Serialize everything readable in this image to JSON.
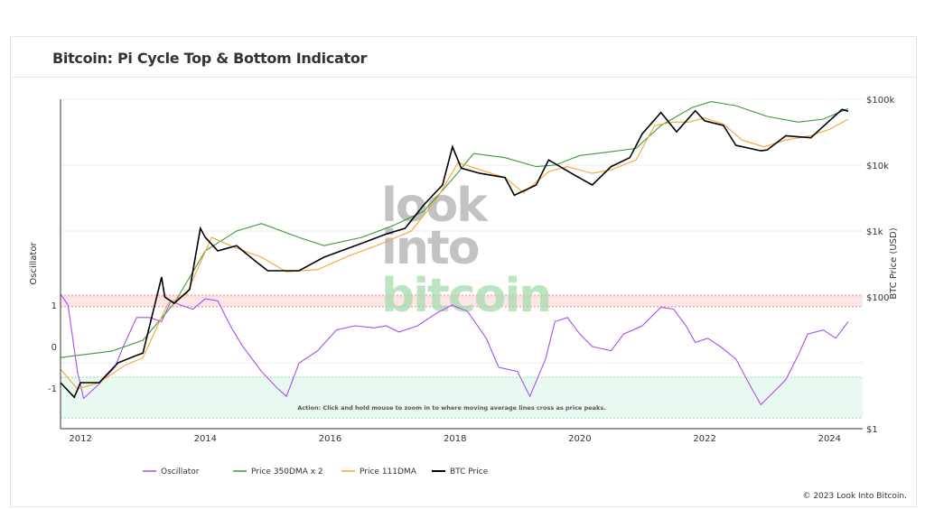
{
  "header": {
    "title": "Bitcoin: Pi Cycle Top & Bottom Indicator"
  },
  "footer": {
    "copyright": "© 2023 Look Into Bitcoin."
  },
  "watermark": [
    "look",
    "into",
    "bitcoin"
  ],
  "chart_data": {
    "type": "line",
    "title": "Bitcoin: Pi Cycle Top & Bottom Indicator",
    "xlabel": "",
    "y_left_label": "Oscillator",
    "y_left_ticks": [
      "1",
      "0",
      "-1"
    ],
    "y_right_label": "BTC Price (USD)",
    "y_right_scale": "log",
    "y_right_ticks": [
      "$1",
      "$100",
      "$1k",
      "$10k",
      "$100k"
    ],
    "x_ticks": [
      "2012",
      "2014",
      "2016",
      "2018",
      "2020",
      "2022",
      "2024"
    ],
    "xlim": [
      2011.68,
      2024.45
    ],
    "annotation": "Action: Click and hold mouse to zoom in to where moving average lines cross as price peaks.",
    "bands": [
      {
        "axis": "left",
        "from": 0.96,
        "to": 1.24,
        "color": "#f4b0b0"
      },
      {
        "axis": "left",
        "from": -1.72,
        "to": -0.74,
        "color": "#b6ecd0"
      }
    ],
    "legend_position": "bottom",
    "series": [
      {
        "name": "Oscillator",
        "axis": "left",
        "color": "#a64ff0",
        "x": [
          2011.68,
          2011.8,
          2011.95,
          2012.05,
          2012.3,
          2012.55,
          2012.7,
          2012.9,
          2013.1,
          2013.3,
          2013.45,
          2013.6,
          2013.8,
          2014.0,
          2014.2,
          2014.4,
          2014.6,
          2014.9,
          2015.15,
          2015.3,
          2015.5,
          2015.8,
          2016.1,
          2016.4,
          2016.7,
          2016.9,
          2017.1,
          2017.4,
          2017.7,
          2017.95,
          2018.2,
          2018.5,
          2018.7,
          2019.0,
          2019.2,
          2019.45,
          2019.6,
          2019.8,
          2020.0,
          2020.2,
          2020.5,
          2020.7,
          2021.0,
          2021.3,
          2021.5,
          2021.7,
          2021.85,
          2022.05,
          2022.25,
          2022.5,
          2022.75,
          2022.9,
          2023.1,
          2023.3,
          2023.5,
          2023.65,
          2023.9,
          2024.1,
          2024.3
        ],
        "y": [
          1.26,
          1.0,
          -0.6,
          -1.25,
          -0.9,
          -0.5,
          0.05,
          0.7,
          0.7,
          0.6,
          1.1,
          1.0,
          0.9,
          1.15,
          1.1,
          0.5,
          0.0,
          -0.6,
          -1.0,
          -1.2,
          -0.4,
          -0.1,
          0.4,
          0.5,
          0.45,
          0.5,
          0.35,
          0.5,
          0.8,
          1.0,
          0.85,
          0.2,
          -0.5,
          -0.6,
          -1.2,
          -0.3,
          0.6,
          0.7,
          0.3,
          0.0,
          -0.1,
          0.3,
          0.5,
          0.95,
          0.9,
          0.5,
          0.1,
          0.2,
          0.0,
          -0.3,
          -1.0,
          -1.4,
          -1.1,
          -0.8,
          -0.2,
          0.3,
          0.4,
          0.2,
          0.6
        ]
      },
      {
        "name": "Price 350DMA x 2",
        "axis": "right",
        "color": "#3a9a3a",
        "x": [
          2011.68,
          2012.5,
          2013.0,
          2013.5,
          2014.0,
          2014.5,
          2014.9,
          2015.5,
          2015.9,
          2016.5,
          2017.0,
          2017.5,
          2017.95,
          2018.3,
          2018.8,
          2019.3,
          2019.6,
          2020.0,
          2020.5,
          2020.9,
          2021.3,
          2021.8,
          2022.1,
          2022.5,
          2023.0,
          2023.5,
          2023.9,
          2024.3
        ],
        "y": [
          12,
          15,
          22,
          80,
          500,
          1000,
          1300,
          800,
          600,
          800,
          1200,
          2000,
          6000,
          15000,
          13000,
          9500,
          10000,
          14000,
          16000,
          18000,
          40000,
          75000,
          92000,
          80000,
          55000,
          45000,
          50000,
          72000
        ]
      },
      {
        "name": "Price 111DMA",
        "axis": "right",
        "color": "#f7a530",
        "x": [
          2011.68,
          2011.95,
          2012.3,
          2012.7,
          2013.0,
          2013.4,
          2013.7,
          2013.9,
          2014.1,
          2014.5,
          2014.9,
          2015.3,
          2015.8,
          2016.3,
          2016.8,
          2017.3,
          2017.7,
          2018.05,
          2018.4,
          2018.8,
          2019.1,
          2019.5,
          2019.8,
          2020.2,
          2020.5,
          2020.9,
          2021.2,
          2021.5,
          2021.75,
          2022.0,
          2022.3,
          2022.6,
          2022.95,
          2023.3,
          2023.7,
          2024.0,
          2024.3
        ],
        "y": [
          8,
          4,
          5,
          9,
          12,
          80,
          110,
          300,
          800,
          550,
          400,
          240,
          260,
          420,
          630,
          1000,
          3000,
          11000,
          8500,
          6500,
          3800,
          8000,
          9500,
          7500,
          8500,
          12000,
          40000,
          45000,
          45000,
          52000,
          42000,
          24000,
          19000,
          24000,
          28000,
          35000,
          50000
        ]
      },
      {
        "name": "BTC Price",
        "axis": "right",
        "color": "#000000",
        "x": [
          2011.68,
          2011.9,
          2012.0,
          2012.3,
          2012.6,
          2012.9,
          2013.0,
          2013.3,
          2013.35,
          2013.5,
          2013.75,
          2013.92,
          2014.0,
          2014.2,
          2014.5,
          2014.8,
          2015.0,
          2015.5,
          2015.9,
          2016.5,
          2016.9,
          2017.2,
          2017.5,
          2017.8,
          2017.96,
          2018.1,
          2018.4,
          2018.8,
          2018.95,
          2019.3,
          2019.5,
          2019.9,
          2020.2,
          2020.5,
          2020.8,
          2021.0,
          2021.3,
          2021.55,
          2021.85,
          2022.0,
          2022.3,
          2022.5,
          2022.9,
          2023.0,
          2023.3,
          2023.7,
          2023.95,
          2024.2,
          2024.3
        ],
        "y": [
          5,
          3,
          5,
          5,
          10,
          13,
          14,
          200,
          100,
          80,
          130,
          1100,
          800,
          500,
          600,
          350,
          250,
          250,
          400,
          650,
          900,
          1100,
          2500,
          5000,
          19000,
          9000,
          7500,
          6500,
          3500,
          5000,
          12000,
          7200,
          5000,
          9500,
          13000,
          30000,
          63000,
          32000,
          67000,
          47000,
          40000,
          20000,
          16500,
          17000,
          28000,
          26000,
          43000,
          70000,
          66000
        ]
      }
    ]
  }
}
